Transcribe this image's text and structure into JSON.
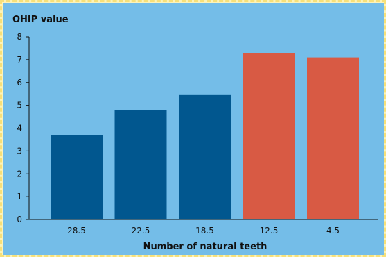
{
  "chart_data": {
    "type": "bar",
    "categories": [
      "28.5",
      "22.5",
      "18.5",
      "12.5",
      "4.5"
    ],
    "values": [
      3.7,
      4.8,
      5.45,
      7.3,
      7.1
    ],
    "bar_colors": [
      "#01578f",
      "#01578f",
      "#01578f",
      "#d85a44",
      "#d85a44"
    ],
    "ylabel": "OHIP value",
    "xlabel": "Number of natural teeth",
    "ylim": [
      0,
      8
    ],
    "yticks": [
      0,
      1,
      2,
      3,
      4,
      5,
      6,
      7,
      8
    ],
    "grid": false
  },
  "colors": {
    "background": "#74bde8",
    "border": "#fdf3b8",
    "axis": "#111111"
  }
}
